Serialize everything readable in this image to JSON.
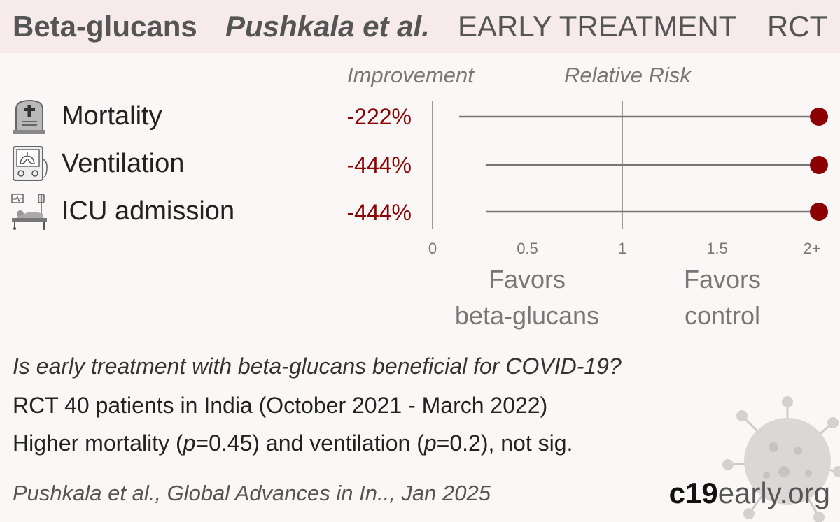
{
  "header": {
    "title": "Beta-glucans",
    "study": "Pushkala et al.",
    "stage": "EARLY TREATMENT",
    "type": "RCT"
  },
  "columns": {
    "improvement": "Improvement",
    "relative_risk": "Relative Risk"
  },
  "outcomes": [
    {
      "label": "Mortality",
      "improvement": "-222%",
      "icon": "tombstone-icon"
    },
    {
      "label": "Ventilation",
      "improvement": "-444%",
      "icon": "ventilator-icon"
    },
    {
      "label": "ICU admission",
      "improvement": "-444%",
      "icon": "icu-bed-icon"
    }
  ],
  "chart_data": {
    "type": "scatter",
    "subtype": "forest-plot",
    "x_axis": {
      "ticks": [
        "0",
        "0.5",
        "1",
        "1.5",
        "2+"
      ],
      "range": [
        0,
        2
      ]
    },
    "series": [
      {
        "outcome": "Mortality",
        "rr": 2,
        "ci_low": 0.14,
        "ci_high": 2
      },
      {
        "outcome": "Ventilation",
        "rr": 2,
        "ci_low": 0.28,
        "ci_high": 2
      },
      {
        "outcome": "ICU admission",
        "rr": 2,
        "ci_low": 0.28,
        "ci_high": 2
      }
    ],
    "reference_line": 1,
    "favors_left": [
      "Favors",
      "beta-glucans"
    ],
    "favors_right": [
      "Favors",
      "control"
    ],
    "colors": {
      "point": "#8b0000",
      "line": "#777777",
      "axis": "#999999"
    }
  },
  "summary": {
    "question": "Is early treatment with beta-glucans beneficial for COVID-19?",
    "design": "RCT 40 patients in India (October 2021 - March 2022)",
    "result_a": "Higher mortality (",
    "result_p1": "p",
    "result_b": "=0.45) and ventilation (",
    "result_p2": "p",
    "result_c": "=0.2), not sig."
  },
  "citation": "Pushkala et al., Global Advances in In.., Jan 2025",
  "brand": {
    "bold": "c19",
    "rest": "early.org"
  }
}
